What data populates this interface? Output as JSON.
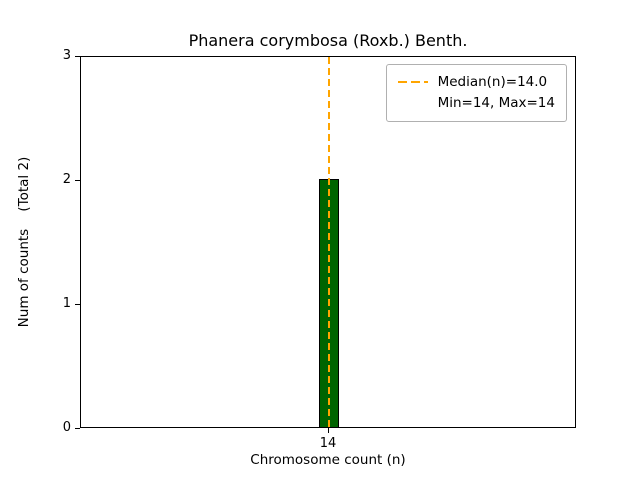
{
  "chart_data": {
    "type": "bar",
    "title": "Phanera corymbosa (Roxb.) Benth.",
    "xlabel": "Chromosome count (n)",
    "ylabel": "Num of counts    (Total 2)",
    "categories": [
      "14"
    ],
    "values": [
      2
    ],
    "ylim": [
      0,
      3
    ],
    "yticks": [
      0,
      1,
      2,
      3
    ],
    "grid": false,
    "bar_color": "#006400",
    "bar_edge_color": "#000000",
    "median_line": {
      "x": "14",
      "color": "#ffa500",
      "style": "dashed",
      "value": 14.0
    },
    "legend": {
      "position": "upper right",
      "entries": [
        {
          "label": "Median(n)=14.0",
          "sample": "dashed-orange-line"
        },
        {
          "label": "Min=14, Max=14",
          "sample": "none"
        }
      ]
    }
  }
}
